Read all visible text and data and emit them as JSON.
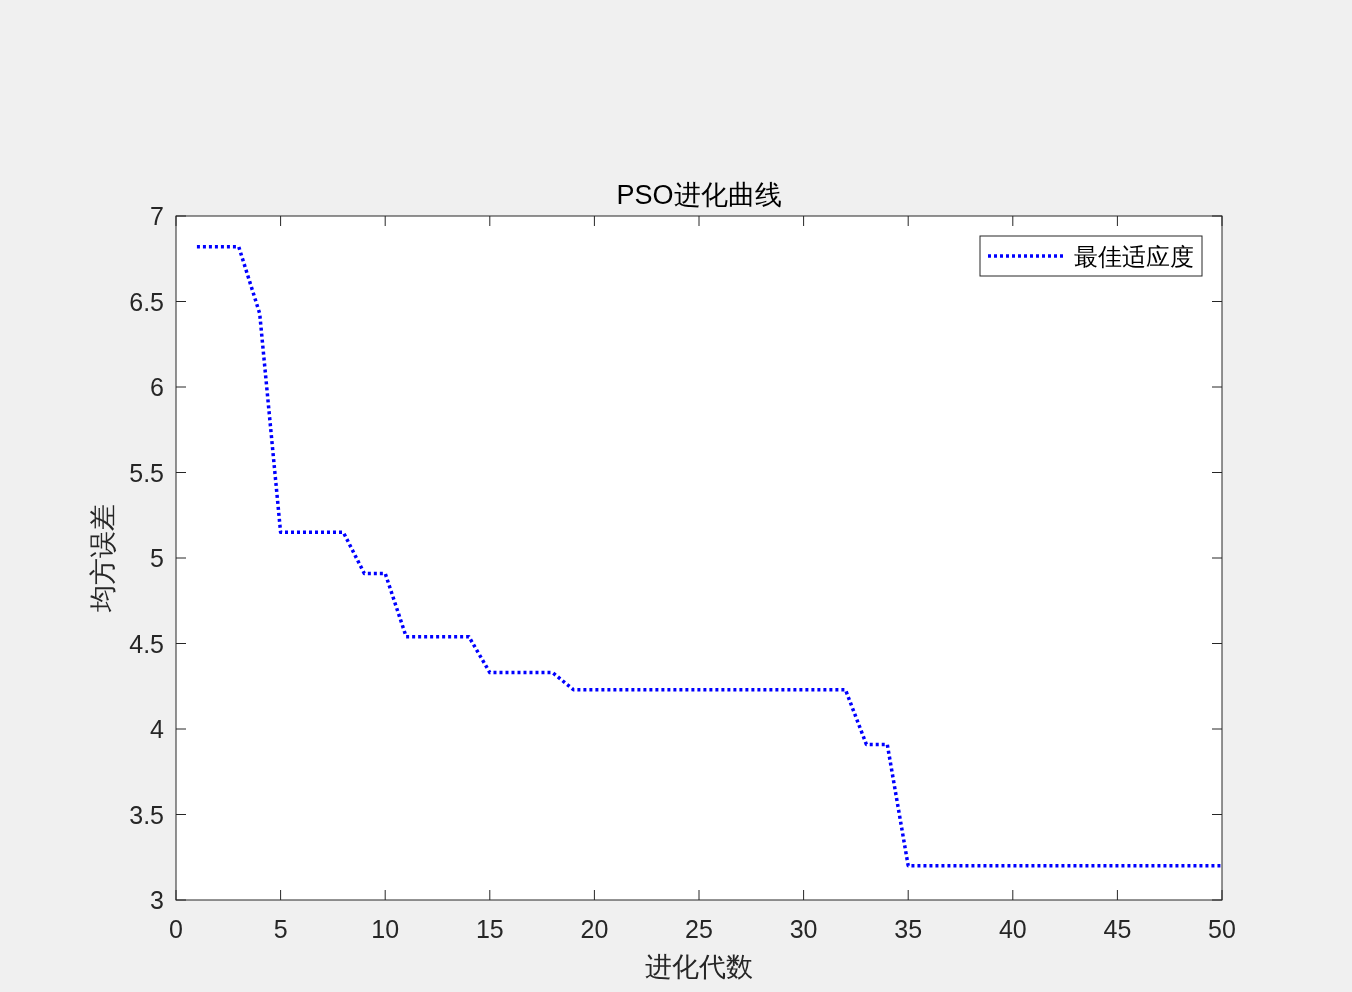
{
  "chart_data": {
    "type": "line",
    "title": "PSO进化曲线",
    "xlabel": "进化代数",
    "ylabel": "均方误差",
    "x": [
      1,
      2,
      3,
      4,
      5,
      6,
      7,
      8,
      9,
      10,
      11,
      12,
      13,
      14,
      15,
      16,
      17,
      18,
      19,
      20,
      21,
      22,
      23,
      24,
      25,
      26,
      27,
      28,
      29,
      30,
      31,
      32,
      33,
      34,
      35,
      36,
      37,
      38,
      39,
      40,
      41,
      42,
      43,
      44,
      45,
      46,
      47,
      48,
      49,
      50
    ],
    "series": [
      {
        "name": "最佳适应度",
        "color": "#0000ff",
        "values": [
          6.82,
          6.82,
          6.82,
          6.43,
          5.15,
          5.15,
          5.15,
          5.15,
          4.91,
          4.91,
          4.54,
          4.54,
          4.54,
          4.54,
          4.33,
          4.33,
          4.33,
          4.33,
          4.23,
          4.23,
          4.23,
          4.23,
          4.23,
          4.23,
          4.23,
          4.23,
          4.23,
          4.23,
          4.23,
          4.23,
          4.23,
          4.23,
          3.91,
          3.91,
          3.2,
          3.2,
          3.2,
          3.2,
          3.2,
          3.2,
          3.2,
          3.2,
          3.2,
          3.2,
          3.2,
          3.2,
          3.2,
          3.2,
          3.2,
          3.2
        ]
      }
    ],
    "xlim": [
      0,
      50
    ],
    "ylim": [
      3,
      7
    ],
    "xticks": [
      0,
      5,
      10,
      15,
      20,
      25,
      30,
      35,
      40,
      45,
      50
    ],
    "yticks": [
      3,
      3.5,
      4,
      4.5,
      5,
      5.5,
      6,
      6.5,
      7
    ],
    "legend": "top right",
    "line_style": "dotted",
    "marker": "none",
    "grid": false
  }
}
